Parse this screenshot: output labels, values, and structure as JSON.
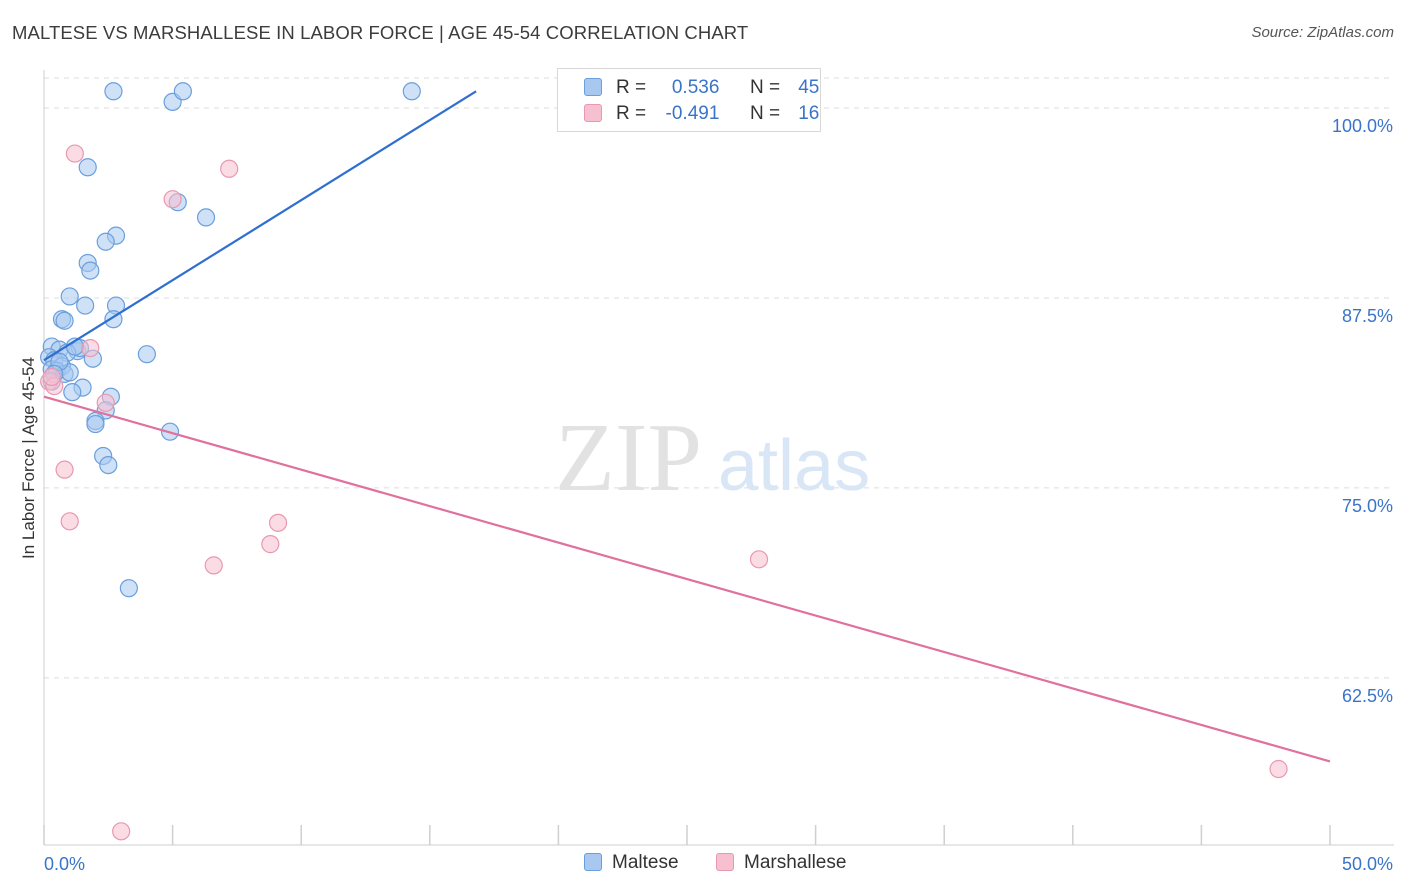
{
  "header": {
    "title": "MALTESE VS MARSHALLESE IN LABOR FORCE | AGE 45-54 CORRELATION CHART",
    "source": "Source: ZipAtlas.com"
  },
  "watermark": {
    "zip": "ZIP",
    "atlas": "atlas"
  },
  "legend": {
    "rows": [
      {
        "r_label": "R =",
        "r_value": "0.536",
        "n_label": "N =",
        "n_value": "45"
      },
      {
        "r_label": "R =",
        "r_value": "-0.491",
        "n_label": "N =",
        "n_value": "16"
      }
    ]
  },
  "bottom_legend": {
    "maltese": "Maltese",
    "marshallese": "Marshallese"
  },
  "colors": {
    "maltese_fill": "#a8c8f0",
    "maltese_stroke": "#6a9fdc",
    "maltese_line": "#2f6fcf",
    "marshallese_fill": "#f7c0d0",
    "marshallese_stroke": "#e898b0",
    "marshallese_line": "#e0719c",
    "tick_label": "#3a74c9",
    "grid": "#dcdcdc"
  },
  "chart_data": {
    "type": "scatter",
    "title": "MALTESE VS MARSHALLESE IN LABOR FORCE | AGE 45-54 CORRELATION CHART",
    "xlabel": "",
    "ylabel": "In Labor Force | Age 45-54",
    "xlim": [
      0,
      50
    ],
    "ylim": [
      51.5,
      102.5
    ],
    "x_tick_labels": [
      "0.0%",
      "50.0%"
    ],
    "y_ticks": [
      62.5,
      75.0,
      87.5,
      100.0
    ],
    "y_tick_labels": [
      "62.5%",
      "75.0%",
      "87.5%",
      "100.0%"
    ],
    "grid": true,
    "series": [
      {
        "name": "Maltese",
        "r": 0.536,
        "n": 45,
        "points": [
          [
            2.7,
            101.1
          ],
          [
            5.0,
            100.4
          ],
          [
            5.4,
            101.1
          ],
          [
            14.3,
            101.1
          ],
          [
            1.7,
            96.1
          ],
          [
            5.2,
            93.8
          ],
          [
            6.3,
            92.8
          ],
          [
            2.8,
            91.6
          ],
          [
            2.4,
            91.2
          ],
          [
            1.7,
            89.8
          ],
          [
            1.8,
            89.3
          ],
          [
            1.0,
            87.6
          ],
          [
            1.6,
            87.0
          ],
          [
            2.8,
            87.0
          ],
          [
            0.7,
            86.1
          ],
          [
            2.7,
            86.1
          ],
          [
            0.8,
            86.0
          ],
          [
            0.3,
            84.3
          ],
          [
            0.6,
            84.1
          ],
          [
            1.3,
            84.0
          ],
          [
            1.4,
            84.2
          ],
          [
            0.9,
            83.9
          ],
          [
            4.0,
            83.8
          ],
          [
            1.9,
            83.5
          ],
          [
            0.2,
            83.6
          ],
          [
            0.4,
            83.4
          ],
          [
            0.3,
            82.8
          ],
          [
            0.7,
            83.0
          ],
          [
            0.5,
            82.7
          ],
          [
            0.8,
            82.5
          ],
          [
            1.5,
            81.6
          ],
          [
            1.1,
            81.3
          ],
          [
            2.6,
            81.0
          ],
          [
            0.3,
            82.0
          ],
          [
            2.4,
            80.1
          ],
          [
            2.0,
            79.4
          ],
          [
            2.0,
            79.2
          ],
          [
            4.9,
            78.7
          ],
          [
            2.3,
            77.1
          ],
          [
            2.5,
            76.5
          ],
          [
            3.3,
            68.4
          ],
          [
            1.0,
            82.6
          ],
          [
            0.6,
            83.3
          ],
          [
            1.2,
            84.3
          ],
          [
            0.4,
            82.5
          ]
        ],
        "trend": [
          [
            0.0,
            83.4
          ],
          [
            16.8,
            101.1
          ]
        ]
      },
      {
        "name": "Marshallese",
        "r": -0.491,
        "n": 16,
        "points": [
          [
            1.2,
            97.0
          ],
          [
            7.2,
            96.0
          ],
          [
            5.0,
            94.0
          ],
          [
            1.8,
            84.2
          ],
          [
            0.2,
            82.0
          ],
          [
            0.4,
            81.7
          ],
          [
            2.4,
            80.6
          ],
          [
            0.8,
            76.2
          ],
          [
            1.0,
            72.8
          ],
          [
            9.1,
            72.7
          ],
          [
            8.8,
            71.3
          ],
          [
            6.6,
            69.9
          ],
          [
            27.8,
            70.3
          ],
          [
            48.0,
            56.5
          ],
          [
            3.0,
            52.4
          ],
          [
            0.3,
            82.3
          ]
        ],
        "trend": [
          [
            0.0,
            81.0
          ],
          [
            50.0,
            57.0
          ]
        ]
      }
    ]
  }
}
